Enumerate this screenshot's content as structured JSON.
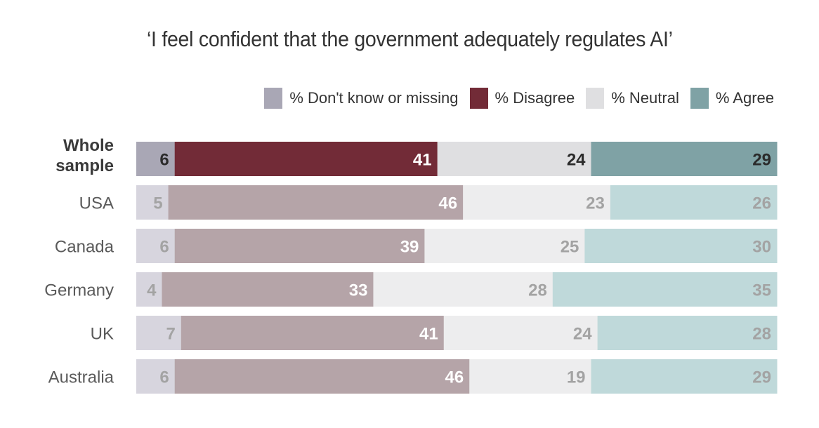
{
  "chart_data": {
    "type": "bar",
    "orientation": "horizontal",
    "stacked": true,
    "title": "‘I feel confident that the government adequately regulates AI’",
    "categories": [
      "Whole sample",
      "USA",
      "Canada",
      "Germany",
      "UK",
      "Australia"
    ],
    "category_display": [
      [
        "Whole",
        "sample"
      ],
      [
        "USA"
      ],
      [
        "Canada"
      ],
      [
        "Germany"
      ],
      [
        "UK"
      ],
      [
        "Australia"
      ]
    ],
    "highlighted_category": "Whole sample",
    "legend_placement": "top-right",
    "grid": false,
    "xlim": [
      0,
      100
    ],
    "series": [
      {
        "name": "% Don't know or missing",
        "values": [
          6,
          5,
          6,
          4,
          7,
          6
        ],
        "color": "#a9a7b5",
        "color_muted": "#d7d5de",
        "label_color": "#2b2b2b",
        "label_color_muted": "#a3a3a3"
      },
      {
        "name": "% Disagree",
        "values": [
          41,
          46,
          39,
          33,
          41,
          46
        ],
        "color": "#722b37",
        "color_muted": "#b5a4a8",
        "label_color": "#ffffff",
        "label_color_muted": "#ffffff"
      },
      {
        "name": "% Neutral",
        "values": [
          24,
          23,
          25,
          28,
          24,
          19
        ],
        "color": "#dfdfe1",
        "color_muted": "#ededee",
        "label_color": "#2b2b2b",
        "label_color_muted": "#a3a3a3"
      },
      {
        "name": "% Agree",
        "values": [
          29,
          26,
          30,
          35,
          28,
          29
        ],
        "color": "#7fa2a5",
        "color_muted": "#bfd9da",
        "label_color": "#2b2b2b",
        "label_color_muted": "#a3a3a3"
      }
    ]
  }
}
